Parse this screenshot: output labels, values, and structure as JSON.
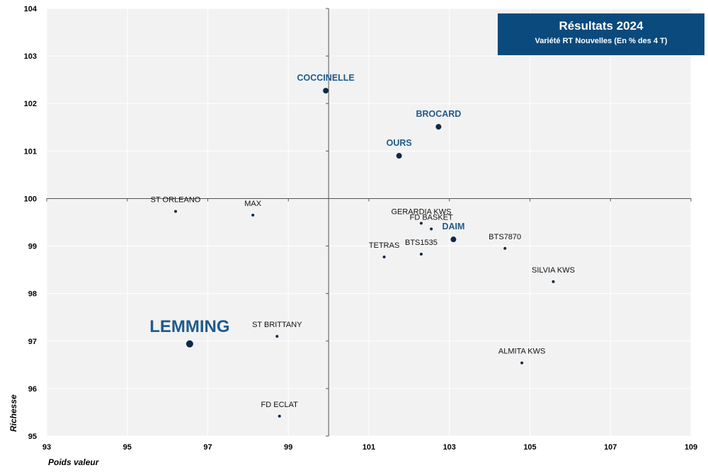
{
  "chart_data": {
    "type": "scatter",
    "title": "Résultats 2024",
    "subtitle": "Variété RT Nouvelles (En % des 4 T)",
    "xlabel": "Poids valeur",
    "ylabel": "Richesse",
    "xlim": [
      93,
      109
    ],
    "ylim": [
      95,
      104
    ],
    "xticks": [
      93,
      95,
      97,
      99,
      101,
      103,
      105,
      107,
      109
    ],
    "yticks": [
      95,
      96,
      97,
      98,
      99,
      100,
      101,
      102,
      103,
      104
    ],
    "x_center": 100,
    "y_center": 100,
    "grid": true,
    "points": [
      {
        "name": "COCCINELLE",
        "x": 99.93,
        "y": 102.27,
        "style": "highlight"
      },
      {
        "name": "BROCARD",
        "x": 102.73,
        "y": 101.51,
        "style": "highlight"
      },
      {
        "name": "OURS",
        "x": 101.75,
        "y": 100.9,
        "style": "highlight"
      },
      {
        "name": "DAIM",
        "x": 103.1,
        "y": 99.14,
        "style": "highlight"
      },
      {
        "name": "LEMMING",
        "x": 96.55,
        "y": 96.94,
        "style": "hero"
      },
      {
        "name": "ST ORLEANO",
        "x": 96.2,
        "y": 99.73,
        "style": "normal"
      },
      {
        "name": "MAX",
        "x": 98.12,
        "y": 99.65,
        "style": "normal"
      },
      {
        "name": "GERARDIA KWS",
        "x": 102.3,
        "y": 99.48,
        "style": "normal"
      },
      {
        "name": "FD BASKET",
        "x": 102.55,
        "y": 99.36,
        "style": "normal"
      },
      {
        "name": "BTS7870",
        "x": 104.38,
        "y": 98.95,
        "style": "normal"
      },
      {
        "name": "TETRAS",
        "x": 101.38,
        "y": 98.77,
        "style": "normal"
      },
      {
        "name": "BTS1535",
        "x": 102.3,
        "y": 98.83,
        "style": "normal"
      },
      {
        "name": "SILVIA KWS",
        "x": 105.58,
        "y": 98.25,
        "style": "normal"
      },
      {
        "name": "ST BRITTANY",
        "x": 98.72,
        "y": 97.1,
        "style": "normal"
      },
      {
        "name": "ALMITA  KWS",
        "x": 104.8,
        "y": 96.54,
        "style": "normal"
      },
      {
        "name": "FD ECLAT",
        "x": 98.78,
        "y": 95.42,
        "style": "normal"
      }
    ]
  }
}
